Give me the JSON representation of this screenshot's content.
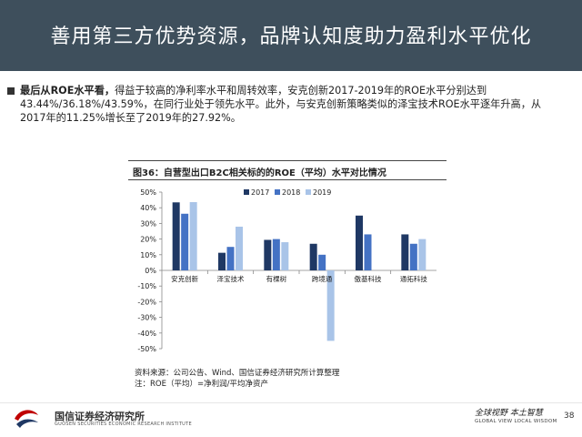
{
  "header": {
    "title": "善用第三方优势资源，品牌认知度助力盈利水平优化"
  },
  "body": {
    "lead": "最后从ROE水平看，",
    "text": "得益于较高的净利率水平和周转效率，安克创新2017-2019年的ROE水平分别达到43.44%/36.18%/43.59%，在同行业处于领先水平。此外，与安克创新策略类似的泽宝技术ROE水平逐年升高，从2017年的11.25%增长至了2019年的27.92%。"
  },
  "chart_title": "图36：自营型出口B2C相关标的的ROE（平均）水平对比情况",
  "chart_data": {
    "type": "bar",
    "categories": [
      "安克创新",
      "泽宝技术",
      "有棵树",
      "跨境通",
      "傲基科技",
      "通拓科技"
    ],
    "series": [
      {
        "name": "2017",
        "color": "#1f3864",
        "values": [
          43.44,
          11.25,
          19.5,
          17,
          35,
          23
        ]
      },
      {
        "name": "2018",
        "color": "#4472c4",
        "values": [
          36.18,
          15,
          20,
          10,
          23,
          17
        ]
      },
      {
        "name": "2019",
        "color": "#a9c4e8",
        "values": [
          43.59,
          27.92,
          18,
          -45,
          null,
          20
        ]
      }
    ],
    "yticks": [
      "50%",
      "40%",
      "30%",
      "20%",
      "10%",
      "0%",
      "-10%",
      "-20%",
      "-30%",
      "-40%",
      "-50%"
    ],
    "ylim": [
      -50,
      50
    ],
    "legend": "top-right"
  },
  "source": {
    "line1": "资料来源：公司公告、Wind、国信证券经济研究所计算整理",
    "line2": "注：ROE（平均）=净利润/平均净资产"
  },
  "footer": {
    "org": "国信证券经济研究所",
    "org_en": "GUOSEN SECURITIES ECONOMIC RESEARCH INSTITUTE",
    "slogan": "全球视野 本土智慧",
    "slogan_en": "GLOBAL VIEW  LOCAL WISDOM",
    "page": "38"
  },
  "colors": {
    "title_bar": "#3e4f5c",
    "logo_red": "#c00000"
  }
}
